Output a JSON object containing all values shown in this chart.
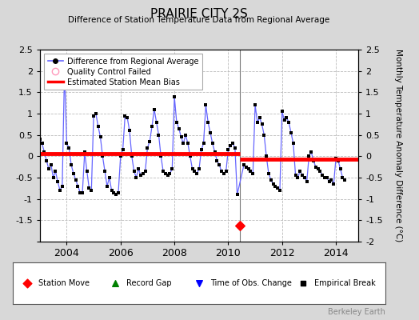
{
  "title": "PRAIRIE CITY 2S",
  "subtitle": "Difference of Station Temperature Data from Regional Average",
  "ylabel": "Monthly Temperature Anomaly Difference (°C)",
  "xlim": [
    2003.0,
    2014.83
  ],
  "ylim": [
    -2.0,
    2.5
  ],
  "yticks": [
    -2,
    -1.5,
    -1,
    -0.5,
    0,
    0.5,
    1,
    1.5,
    2,
    2.5
  ],
  "xticks": [
    2004,
    2006,
    2008,
    2010,
    2012,
    2014
  ],
  "bg_color": "#d8d8d8",
  "plot_bg_color": "#ffffff",
  "grid_color": "#bbbbbb",
  "line_color": "#6666ff",
  "marker_color": "#000000",
  "bias_color": "#ff0000",
  "vline_color": "#555555",
  "station_move_x": 2010.42,
  "station_move_y": -1.62,
  "vline_x": 2010.42,
  "bias_segment1": {
    "x": [
      2003.0,
      2010.42
    ],
    "y": [
      0.07,
      0.07
    ]
  },
  "bias_segment2": {
    "x": [
      2010.42,
      2014.83
    ],
    "y": [
      -0.07,
      -0.07
    ]
  },
  "time_series": {
    "x": [
      2003.0,
      2003.083,
      2003.167,
      2003.25,
      2003.333,
      2003.417,
      2003.5,
      2003.583,
      2003.667,
      2003.75,
      2003.833,
      2003.917,
      2004.0,
      2004.083,
      2004.167,
      2004.25,
      2004.333,
      2004.417,
      2004.5,
      2004.583,
      2004.667,
      2004.75,
      2004.833,
      2004.917,
      2005.0,
      2005.083,
      2005.167,
      2005.25,
      2005.333,
      2005.417,
      2005.5,
      2005.583,
      2005.667,
      2005.75,
      2005.833,
      2005.917,
      2006.0,
      2006.083,
      2006.167,
      2006.25,
      2006.333,
      2006.417,
      2006.5,
      2006.583,
      2006.667,
      2006.75,
      2006.833,
      2006.917,
      2007.0,
      2007.083,
      2007.167,
      2007.25,
      2007.333,
      2007.417,
      2007.5,
      2007.583,
      2007.667,
      2007.75,
      2007.833,
      2007.917,
      2008.0,
      2008.083,
      2008.167,
      2008.25,
      2008.333,
      2008.417,
      2008.5,
      2008.583,
      2008.667,
      2008.75,
      2008.833,
      2008.917,
      2009.0,
      2009.083,
      2009.167,
      2009.25,
      2009.333,
      2009.417,
      2009.5,
      2009.583,
      2009.667,
      2009.75,
      2009.833,
      2009.917,
      2010.0,
      2010.083,
      2010.167,
      2010.25,
      2010.333,
      2010.583,
      2010.667,
      2010.75,
      2010.833,
      2010.917,
      2011.0,
      2011.083,
      2011.167,
      2011.25,
      2011.333,
      2011.417,
      2011.5,
      2011.583,
      2011.667,
      2011.75,
      2011.833,
      2011.917,
      2012.0,
      2012.083,
      2012.167,
      2012.25,
      2012.333,
      2012.417,
      2012.5,
      2012.583,
      2012.667,
      2012.75,
      2012.833,
      2012.917,
      2013.0,
      2013.083,
      2013.167,
      2013.25,
      2013.333,
      2013.417,
      2013.5,
      2013.583,
      2013.667,
      2013.75,
      2013.833,
      2013.917,
      2014.0,
      2014.083,
      2014.167,
      2014.25,
      2014.333
    ],
    "y": [
      0.4,
      0.3,
      0.1,
      -0.1,
      -0.3,
      -0.2,
      -0.5,
      -0.35,
      -0.6,
      -0.8,
      -0.7,
      2.0,
      0.3,
      0.2,
      -0.2,
      -0.4,
      -0.55,
      -0.7,
      -0.85,
      -0.85,
      0.1,
      -0.35,
      -0.75,
      -0.8,
      0.95,
      1.0,
      0.7,
      0.45,
      0.0,
      -0.35,
      -0.7,
      -0.5,
      -0.8,
      -0.85,
      -0.9,
      -0.85,
      0.0,
      0.15,
      0.95,
      0.9,
      0.6,
      0.0,
      -0.35,
      -0.5,
      -0.3,
      -0.45,
      -0.4,
      -0.35,
      0.2,
      0.35,
      0.7,
      1.1,
      0.8,
      0.5,
      0.0,
      -0.35,
      -0.4,
      -0.45,
      -0.4,
      -0.3,
      1.4,
      0.8,
      0.65,
      0.45,
      0.3,
      0.5,
      0.3,
      0.0,
      -0.3,
      -0.35,
      -0.4,
      -0.3,
      0.15,
      0.3,
      1.2,
      0.8,
      0.55,
      0.3,
      0.1,
      -0.1,
      -0.2,
      -0.35,
      -0.4,
      -0.35,
      0.15,
      0.25,
      0.3,
      0.2,
      -0.9,
      -0.2,
      -0.25,
      -0.3,
      -0.35,
      -0.4,
      1.2,
      0.8,
      0.9,
      0.75,
      0.5,
      0.0,
      -0.4,
      -0.55,
      -0.65,
      -0.7,
      -0.75,
      -0.8,
      1.05,
      0.85,
      0.9,
      0.8,
      0.55,
      0.3,
      -0.45,
      -0.5,
      -0.35,
      -0.45,
      -0.5,
      -0.6,
      0.0,
      0.1,
      -0.1,
      -0.25,
      -0.3,
      -0.35,
      -0.45,
      -0.5,
      -0.5,
      -0.6,
      -0.55,
      -0.65,
      -0.05,
      -0.1,
      -0.3,
      -0.5,
      -0.55
    ]
  },
  "berkeley_earth_text": "Berkeley Earth",
  "footer_color": "#888888"
}
